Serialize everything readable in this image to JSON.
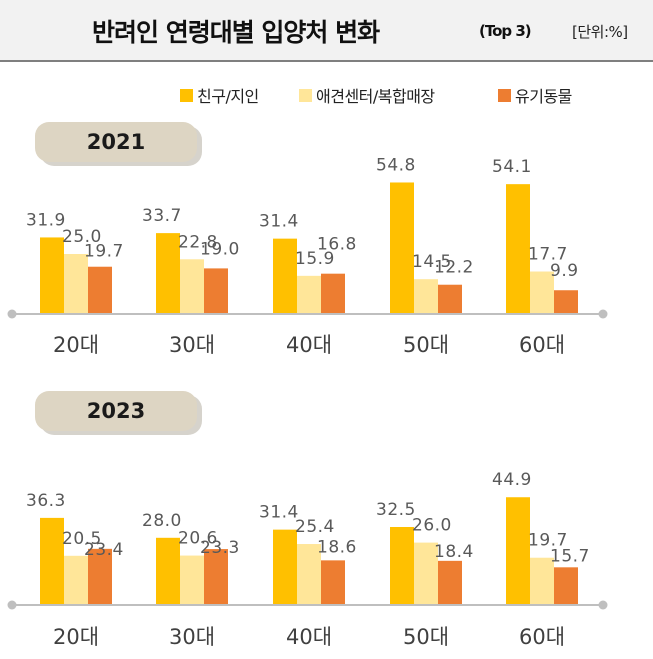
{
  "header": {
    "title": "반려인 연령대별 입양처 변화",
    "title_sub": "(Top 3)",
    "unit": "[단위:%]"
  },
  "colors": {
    "series1": "#ffc000",
    "series2": "#ffe699",
    "series3": "#ed7d31",
    "year_badge": "#ddd5c3",
    "axis": "#bfbfbf",
    "label": "#595959"
  },
  "chart_data": [
    {
      "type": "bar",
      "title": "2021",
      "categories": [
        "20대",
        "30대",
        "40대",
        "50대",
        "60대"
      ],
      "series": [
        {
          "name": "친구/지인",
          "values": [
            31.9,
            33.7,
            31.4,
            54.8,
            54.1
          ]
        },
        {
          "name": "애견센터/복합매장",
          "values": [
            25.0,
            22.8,
            15.9,
            14.5,
            17.7
          ]
        },
        {
          "name": "유기동물",
          "values": [
            19.7,
            19.0,
            16.8,
            12.2,
            9.9
          ]
        }
      ],
      "data_labels": [
        [
          "31.9",
          "33.7",
          "31.4",
          "54.8",
          "54.1"
        ],
        [
          "25.0",
          "22.8",
          "15.9",
          "14.5",
          "17.7"
        ],
        [
          "19.7",
          "19.0",
          "16.8",
          "12.2",
          "9.9"
        ]
      ],
      "ylim": [
        0,
        60
      ],
      "legend": "top-right",
      "grid": false
    },
    {
      "type": "bar",
      "title": "2023",
      "categories": [
        "20대",
        "30대",
        "40대",
        "50대",
        "60대"
      ],
      "series": [
        {
          "name": "친구/지인",
          "values": [
            36.3,
            28.0,
            31.4,
            32.5,
            44.9
          ]
        },
        {
          "name": "애견센터/복합매장",
          "values": [
            20.5,
            20.6,
            25.4,
            26.0,
            19.7
          ]
        },
        {
          "name": "유기동물",
          "values": [
            23.4,
            23.3,
            18.6,
            18.4,
            15.7
          ]
        }
      ],
      "data_labels": [
        [
          "36.3",
          "28.0",
          "31.4",
          "32.5",
          "44.9"
        ],
        [
          "20.5",
          "20.6",
          "25.4",
          "26.0",
          "19.7"
        ],
        [
          "23.4",
          "23.3",
          "18.6",
          "18.4",
          "15.7"
        ]
      ],
      "ylim": [
        0,
        60
      ],
      "legend": "top-right",
      "grid": false
    }
  ]
}
